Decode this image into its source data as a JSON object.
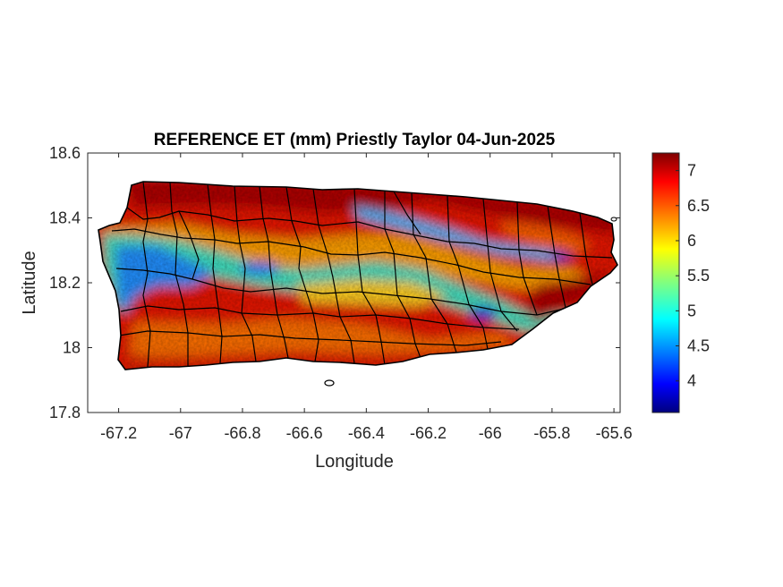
{
  "chart_data": {
    "type": "heatmap",
    "title": "REFERENCE ET (mm) Priestly Taylor 04-Jun-2025",
    "xlabel": "Longitude",
    "ylabel": "Latitude",
    "xlim": [
      -67.3,
      -65.58
    ],
    "ylim": [
      17.8,
      18.6
    ],
    "xticks": [
      -67.2,
      -67,
      -66.8,
      -66.6,
      -66.4,
      -66.2,
      -66,
      -65.8,
      -65.6
    ],
    "xtick_labels": [
      "-67.2",
      "-67",
      "-66.8",
      "-66.6",
      "-66.4",
      "-66.2",
      "-66",
      "-65.8",
      "-65.6"
    ],
    "yticks": [
      17.8,
      18,
      18.2,
      18.4,
      18.6
    ],
    "ytick_labels": [
      "17.8",
      "18",
      "18.2",
      "18.4",
      "18.6"
    ],
    "colorbar": {
      "colormap": "jet",
      "min": 3.55,
      "max": 7.25,
      "ticks": [
        4,
        4.5,
        5,
        5.5,
        6,
        6.5,
        7
      ],
      "tick_labels": [
        "4",
        "4.5",
        "5",
        "5.5",
        "6",
        "6.5",
        "7"
      ]
    },
    "pattern": "High ET (~6.5-7.2 mm) along north and south coasts; low ET band (~4.5-5.5 mm) along the central mountain range from west (~-67.2) to east, minimum (~3.8-4) near -66.05, 18.12 and -65.82, 18.29",
    "grid": false,
    "box": true
  }
}
